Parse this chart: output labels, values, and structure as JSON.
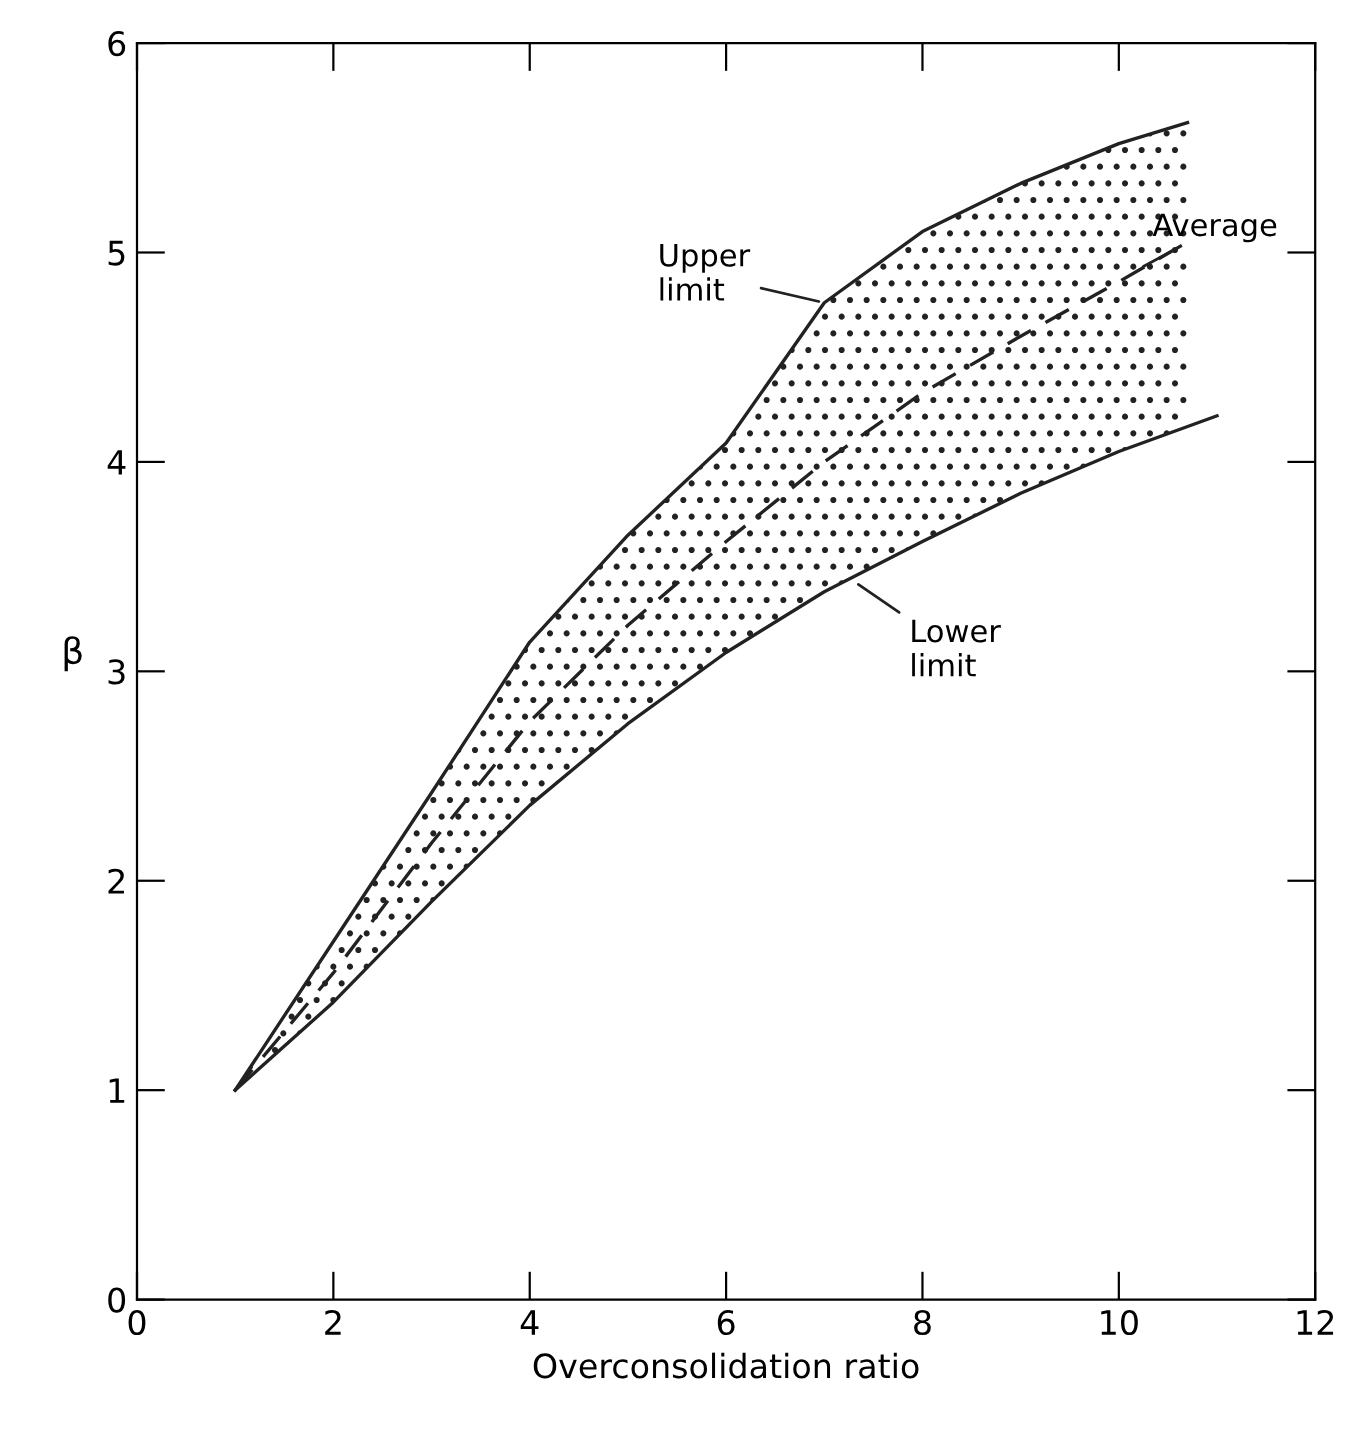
{
  "chart_data": {
    "type": "line",
    "xlabel": "Overconsolidation ratio",
    "ylabel": "β",
    "xlim": [
      0,
      12
    ],
    "ylim": [
      0,
      6
    ],
    "xticks": [
      0,
      2,
      4,
      6,
      8,
      10,
      12
    ],
    "yticks": [
      0,
      1,
      2,
      3,
      4,
      5,
      6
    ],
    "grid": false,
    "marker": "none",
    "series": [
      {
        "color": "#222222",
        "line_style": "solid",
        "x": [
          1,
          2,
          3,
          4,
          5,
          6,
          7,
          8,
          9,
          10,
          10.7
        ],
        "values": [
          1,
          1.71,
          2.42,
          3.14,
          3.65,
          4.09,
          4.76,
          5.1,
          5.33,
          5.52,
          5.62
        ]
      },
      {
        "color": "#222222",
        "line_style": "dashed",
        "x": [
          1,
          2,
          3,
          4,
          5,
          6,
          7,
          8,
          9,
          10,
          10.7
        ],
        "values": [
          1,
          1.56,
          2.18,
          2.76,
          3.22,
          3.62,
          4.0,
          4.33,
          4.6,
          4.86,
          5.05
        ],
        "lower": [
          1,
          1.42,
          1.9,
          2.36,
          2.75,
          3.09,
          3.38,
          3.62,
          3.85,
          4.05,
          4.17
        ],
        "upper": [
          1,
          1.71,
          2.42,
          3.14,
          3.65,
          4.09,
          4.76,
          5.1,
          5.33,
          5.52,
          5.62
        ]
      },
      {
        "color": "#222222",
        "line_style": "solid",
        "x": [
          1,
          2,
          3,
          4,
          5,
          6,
          7,
          8,
          9,
          10,
          11
        ],
        "values": [
          1,
          1.42,
          1.9,
          2.36,
          2.75,
          3.09,
          3.38,
          3.62,
          3.85,
          4.05,
          4.22
        ]
      }
    ],
    "annotations": [
      {
        "text": "Upper\nlimit",
        "x": 7,
        "y": 4.76
      },
      {
        "text": "Average",
        "x": 10.2,
        "y": 4.92
      },
      {
        "text": "Lower\nlimit",
        "x": 7.3,
        "y": 3.43
      }
    ]
  }
}
